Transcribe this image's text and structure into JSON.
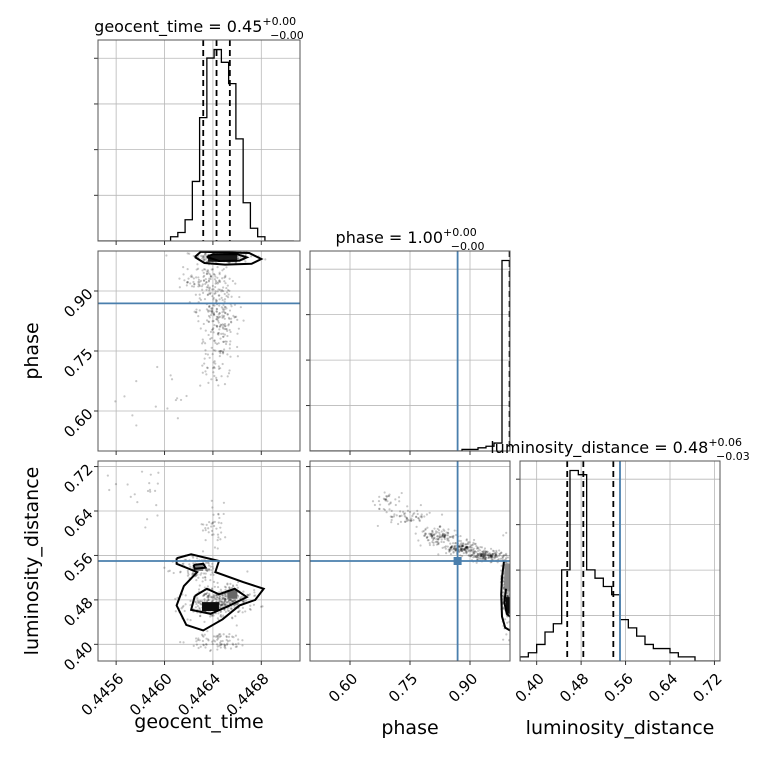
{
  "chart_data": {
    "type": "corner",
    "parameters": [
      "geocent_time",
      "phase",
      "luminosity_distance"
    ],
    "titles": [
      {
        "param": "geocent_time",
        "label": "geocent_time = 0.45",
        "plus": "+0.00",
        "minus": "−0.00"
      },
      {
        "param": "phase",
        "label": "phase = 1.00",
        "plus": "+0.00",
        "minus": "−0.00"
      },
      {
        "param": "luminosity_distance",
        "label": "luminosity_distance = 0.48",
        "plus": "+0.06",
        "minus": "−0.03"
      }
    ],
    "axes": {
      "geocent_time": {
        "range": [
          0.44545,
          0.44712
        ],
        "ticks": [
          0.4456,
          0.446,
          0.4464,
          0.4468
        ],
        "tick_labels": [
          "0.4456",
          "0.4460",
          "0.4464",
          "0.4468"
        ]
      },
      "phase": {
        "range": [
          0.5,
          1.0
        ],
        "ticks": [
          0.6,
          0.75,
          0.9
        ],
        "tick_labels": [
          "0.60",
          "0.75",
          "0.90"
        ]
      },
      "luminosity_distance": {
        "range": [
          0.37,
          0.73
        ],
        "ticks": [
          0.4,
          0.48,
          0.56,
          0.64,
          0.72
        ],
        "tick_labels": [
          "0.40",
          "0.48",
          "0.56",
          "0.64",
          "0.72"
        ]
      }
    },
    "truths": {
      "geocent_time": null,
      "phase": 0.869,
      "luminosity_distance": 0.55
    },
    "quantiles": {
      "geocent_time": [
        0.44632,
        0.44643,
        0.44654
      ],
      "phase": [
        0.999
      ],
      "luminosity_distance": [
        0.455,
        0.484,
        0.538
      ]
    },
    "histograms": {
      "geocent_time": {
        "edges": [
          0.44545,
          0.44551,
          0.44557,
          0.44563,
          0.44569,
          0.44575,
          0.44581,
          0.44587,
          0.44593,
          0.44599,
          0.44605,
          0.44611,
          0.44617,
          0.44623,
          0.44629,
          0.44635,
          0.44641,
          0.44647,
          0.44653,
          0.44659,
          0.44665,
          0.44671,
          0.44677,
          0.44683,
          0.44689,
          0.44695,
          0.44701,
          0.44707
        ],
        "counts": [
          0,
          0,
          0,
          0,
          0,
          0,
          0,
          0,
          0,
          0,
          1,
          2,
          5,
          14,
          29,
          43,
          45,
          42,
          37,
          24,
          9,
          3,
          1,
          0,
          0,
          0,
          0
        ]
      },
      "phase": {
        "edges": [
          0.5,
          0.52,
          0.54,
          0.56,
          0.58,
          0.6,
          0.62,
          0.64,
          0.66,
          0.68,
          0.7,
          0.72,
          0.74,
          0.76,
          0.78,
          0.8,
          0.82,
          0.84,
          0.86,
          0.88,
          0.9,
          0.92,
          0.94,
          0.96,
          0.98,
          1.0
        ],
        "counts": [
          0,
          0,
          0,
          0,
          0,
          0,
          0,
          0,
          0,
          0,
          0,
          0,
          0,
          0,
          0,
          0,
          0,
          0,
          0,
          1,
          1,
          2,
          3,
          5,
          120
        ]
      },
      "luminosity_distance": {
        "edges": [
          0.37,
          0.385,
          0.4,
          0.415,
          0.43,
          0.445,
          0.46,
          0.475,
          0.49,
          0.505,
          0.52,
          0.535,
          0.55,
          0.565,
          0.58,
          0.595,
          0.61,
          0.625,
          0.64,
          0.655,
          0.67,
          0.685,
          0.7,
          0.715,
          0.73
        ],
        "counts": [
          1,
          2,
          4,
          7,
          9,
          22,
          46,
          45,
          22,
          20,
          18,
          16,
          10,
          8,
          6,
          4,
          3,
          3,
          2,
          1,
          1,
          0,
          0,
          0
        ]
      }
    },
    "scatter_2d": [
      {
        "x": "geocent_time",
        "y": "phase",
        "clusters": [
          {
            "cx": 0.4465,
            "cy": 0.985,
            "sx": 0.00012,
            "sy": 0.008,
            "n": 200
          },
          {
            "cx": 0.44635,
            "cy": 0.93,
            "sx": 9e-05,
            "sy": 0.025,
            "n": 120
          },
          {
            "cx": 0.44643,
            "cy": 0.86,
            "sx": 8e-05,
            "sy": 0.03,
            "n": 110
          },
          {
            "cx": 0.44648,
            "cy": 0.8,
            "sx": 7e-05,
            "sy": 0.03,
            "n": 90
          },
          {
            "cx": 0.44642,
            "cy": 0.72,
            "sx": 6e-05,
            "sy": 0.03,
            "n": 50
          },
          {
            "cx": 0.4459,
            "cy": 0.63,
            "sx": 0.0002,
            "sy": 0.04,
            "n": 15
          }
        ],
        "density": [
          {
            "cx": 0.44648,
            "cy": 0.982,
            "w": 0.00024,
            "h": 0.018,
            "level": 0.9
          }
        ],
        "contours": [
          [
            [
              0.44625,
              0.985
            ],
            [
              0.44633,
              0.97
            ],
            [
              0.4465,
              0.966
            ],
            [
              0.44672,
              0.968
            ],
            [
              0.4468,
              0.98
            ],
            [
              0.4467,
              0.995
            ],
            [
              0.4463,
              0.998
            ],
            [
              0.44625,
              0.985
            ]
          ],
          [
            [
              0.44635,
              0.985
            ],
            [
              0.44645,
              0.975
            ],
            [
              0.44662,
              0.976
            ],
            [
              0.44668,
              0.984
            ],
            [
              0.4466,
              0.992
            ],
            [
              0.4464,
              0.992
            ],
            [
              0.44635,
              0.985
            ]
          ]
        ]
      },
      {
        "x": "geocent_time",
        "y": "luminosity_distance",
        "clusters": [
          {
            "cx": 0.44642,
            "cy": 0.47,
            "sx": 0.00013,
            "sy": 0.012,
            "n": 260
          },
          {
            "cx": 0.44652,
            "cy": 0.49,
            "sx": 0.0001,
            "sy": 0.012,
            "n": 120
          },
          {
            "cx": 0.44628,
            "cy": 0.535,
            "sx": 9e-05,
            "sy": 0.012,
            "n": 100
          },
          {
            "cx": 0.44645,
            "cy": 0.405,
            "sx": 0.00012,
            "sy": 0.008,
            "n": 80
          },
          {
            "cx": 0.44642,
            "cy": 0.615,
            "sx": 5e-05,
            "sy": 0.02,
            "n": 40
          },
          {
            "cx": 0.4458,
            "cy": 0.68,
            "sx": 0.00015,
            "sy": 0.03,
            "n": 20
          }
        ],
        "density": [
          {
            "cx": 0.44638,
            "cy": 0.468,
            "w": 0.00014,
            "h": 0.016,
            "level": 0.95
          },
          {
            "cx": 0.44656,
            "cy": 0.49,
            "w": 8e-05,
            "h": 0.016,
            "level": 0.6
          },
          {
            "cx": 0.44628,
            "cy": 0.538,
            "w": 8e-05,
            "h": 0.012,
            "level": 0.5
          }
        ],
        "contours": [
          [
            [
              0.4461,
              0.555
            ],
            [
              0.44622,
              0.562
            ],
            [
              0.44645,
              0.55
            ],
            [
              0.44642,
              0.53
            ],
            [
              0.44665,
              0.512
            ],
            [
              0.44682,
              0.5
            ],
            [
              0.44675,
              0.48
            ],
            [
              0.44662,
              0.47
            ],
            [
              0.44648,
              0.445
            ],
            [
              0.44632,
              0.425
            ],
            [
              0.44618,
              0.435
            ],
            [
              0.4461,
              0.47
            ],
            [
              0.44616,
              0.505
            ],
            [
              0.44627,
              0.53
            ],
            [
              0.4461,
              0.545
            ],
            [
              0.4461,
              0.555
            ]
          ],
          [
            [
              0.44625,
              0.487
            ],
            [
              0.44635,
              0.5
            ],
            [
              0.44645,
              0.49
            ],
            [
              0.44658,
              0.5
            ],
            [
              0.44668,
              0.485
            ],
            [
              0.44652,
              0.468
            ],
            [
              0.44638,
              0.455
            ],
            [
              0.44622,
              0.462
            ],
            [
              0.44625,
              0.487
            ]
          ],
          [
            [
              0.44624,
              0.543
            ],
            [
              0.44632,
              0.545
            ],
            [
              0.44634,
              0.538
            ],
            [
              0.44625,
              0.536
            ],
            [
              0.44624,
              0.543
            ]
          ]
        ]
      },
      {
        "x": "phase",
        "y": "luminosity_distance",
        "clusters": [
          {
            "cx": 0.69,
            "cy": 0.66,
            "sx": 0.02,
            "sy": 0.008,
            "n": 30
          },
          {
            "cx": 0.75,
            "cy": 0.63,
            "sx": 0.025,
            "sy": 0.008,
            "n": 60
          },
          {
            "cx": 0.82,
            "cy": 0.595,
            "sx": 0.025,
            "sy": 0.007,
            "n": 120
          },
          {
            "cx": 0.88,
            "cy": 0.573,
            "sx": 0.02,
            "sy": 0.006,
            "n": 160
          },
          {
            "cx": 0.94,
            "cy": 0.56,
            "sx": 0.02,
            "sy": 0.005,
            "n": 160
          },
          {
            "cx": 0.99,
            "cy": 0.5,
            "sx": 0.006,
            "sy": 0.035,
            "n": 200
          }
        ],
        "density": [
          {
            "cx": 0.995,
            "cy": 0.47,
            "w": 0.01,
            "h": 0.03,
            "level": 0.95
          },
          {
            "cx": 0.993,
            "cy": 0.52,
            "w": 0.014,
            "h": 0.05,
            "level": 0.45
          }
        ],
        "contours": [
          [
            [
              0.985,
              0.55
            ],
            [
              0.98,
              0.52
            ],
            [
              0.978,
              0.49
            ],
            [
              0.98,
              0.45
            ],
            [
              0.988,
              0.43
            ],
            [
              1.0,
              0.425
            ]
          ],
          [
            [
              0.99,
              0.5
            ],
            [
              0.986,
              0.475
            ],
            [
              0.992,
              0.455
            ],
            [
              1.0,
              0.45
            ]
          ]
        ]
      }
    ]
  }
}
